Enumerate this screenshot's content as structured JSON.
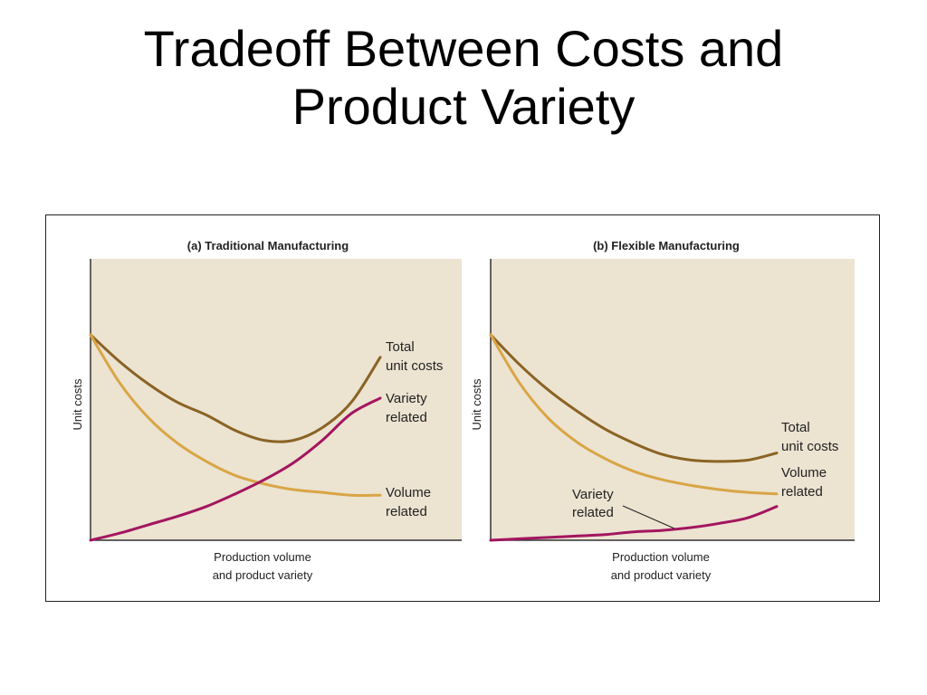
{
  "title": {
    "line1": "Tradeoff Between Costs and",
    "line2": "Product Variety"
  },
  "colors": {
    "plot_background": "#ece3d1",
    "total_unit_costs": "#8a6324",
    "volume_related": "#d9a545",
    "variety_related": "#a3155f"
  },
  "chart_data": [
    {
      "type": "line",
      "title": "(a) Traditional Manufacturing",
      "xlabel": "Production volume\nand product variety",
      "xlabel_lines": [
        "Production volume",
        "and product variety"
      ],
      "ylabel": "Unit costs",
      "x": [
        0,
        1,
        2,
        3,
        4,
        5,
        6,
        7,
        8,
        9,
        10
      ],
      "xlim": [
        0,
        10
      ],
      "ylim": [
        0,
        10
      ],
      "grid": false,
      "series": [
        {
          "key": "total",
          "name": "Total unit costs",
          "label_lines": [
            "Total",
            "unit costs"
          ],
          "color": "#8a6324",
          "values": [
            7.3,
            6.35,
            5.55,
            4.9,
            4.45,
            3.9,
            3.55,
            3.55,
            4.0,
            4.9,
            6.5
          ]
        },
        {
          "key": "volume",
          "name": "Volume related",
          "label_lines": [
            "Volume",
            "related"
          ],
          "color": "#d9a545",
          "values": [
            7.3,
            5.6,
            4.35,
            3.45,
            2.8,
            2.3,
            2.0,
            1.8,
            1.7,
            1.6,
            1.6
          ]
        },
        {
          "key": "variety",
          "name": "Variety related",
          "label_lines": [
            "Variety",
            "related"
          ],
          "color": "#a3155f",
          "values": [
            0.0,
            0.25,
            0.55,
            0.85,
            1.2,
            1.65,
            2.15,
            2.75,
            3.55,
            4.5,
            5.05
          ]
        }
      ]
    },
    {
      "type": "line",
      "title": "(b) Flexible Manufacturing",
      "xlabel": "Production volume\nand product variety",
      "xlabel_lines": [
        "Production volume",
        "and product variety"
      ],
      "ylabel": "Unit costs",
      "x": [
        0,
        1,
        2,
        3,
        4,
        5,
        6,
        7,
        8,
        9,
        10
      ],
      "xlim": [
        0,
        10
      ],
      "ylim": [
        0,
        10
      ],
      "grid": false,
      "series": [
        {
          "key": "total",
          "name": "Total unit costs",
          "label_lines": [
            "Total",
            "unit costs"
          ],
          "color": "#8a6324",
          "values": [
            7.3,
            6.25,
            5.35,
            4.6,
            3.95,
            3.45,
            3.05,
            2.85,
            2.8,
            2.85,
            3.1
          ]
        },
        {
          "key": "volume",
          "name": "Volume related",
          "label_lines": [
            "Volume",
            "related"
          ],
          "color": "#d9a545",
          "values": [
            7.3,
            5.6,
            4.35,
            3.5,
            2.9,
            2.45,
            2.15,
            1.95,
            1.8,
            1.7,
            1.65
          ]
        },
        {
          "key": "variety",
          "name": "Variety related",
          "label_lines": [
            "Variety",
            "related"
          ],
          "color": "#a3155f",
          "values": [
            0.0,
            0.05,
            0.1,
            0.15,
            0.2,
            0.3,
            0.35,
            0.45,
            0.6,
            0.8,
            1.2
          ]
        }
      ]
    }
  ]
}
